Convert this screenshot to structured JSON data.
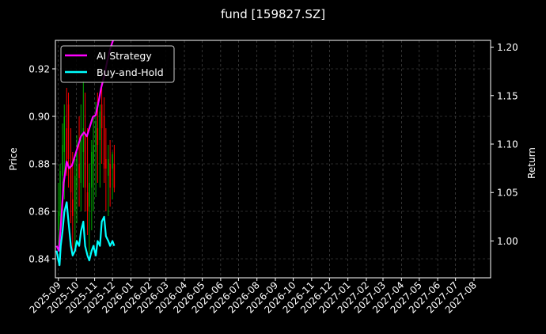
{
  "chart_data": {
    "type": "line",
    "title": "fund [159827.SZ]",
    "xlabel": "",
    "ylabel": "Price",
    "y2label": "Return",
    "background": "#000000",
    "grid": true,
    "legend_placement": "top-left",
    "xlim": [
      "2025-08-27",
      "2027-08-29"
    ],
    "ylim": [
      0.832,
      0.932
    ],
    "y2lim": [
      0.962,
      1.207
    ],
    "x_ticks": [
      "2025-09",
      "2025-10",
      "2025-11",
      "2025-12",
      "2026-01",
      "2026-02",
      "2026-03",
      "2026-04",
      "2026-05",
      "2026-06",
      "2026-07",
      "2026-08",
      "2026-09",
      "2026-10",
      "2026-11",
      "2026-12",
      "2027-01",
      "2027-02",
      "2027-03",
      "2027-04",
      "2027-05",
      "2027-06",
      "2027-07",
      "2027-08"
    ],
    "y_ticks": [
      "0.84",
      "0.86",
      "0.88",
      "0.90",
      "0.92"
    ],
    "y2_ticks": [
      "1.00",
      "1.05",
      "1.10",
      "1.15",
      "1.20"
    ],
    "colors": {
      "up": "#00aa00",
      "down": "#ff0000",
      "ai": "#ff00ff",
      "bh": "#00ffff"
    },
    "series": [
      {
        "name": "AI Strategy",
        "axis": "right",
        "x": [
          "2025-08-29",
          "2025-09-02",
          "2025-09-05",
          "2025-09-10",
          "2025-09-15",
          "2025-09-19",
          "2025-09-24",
          "2025-09-29",
          "2025-10-04",
          "2025-10-09",
          "2025-10-14",
          "2025-10-19",
          "2025-10-24",
          "2025-10-29",
          "2025-11-03",
          "2025-11-08",
          "2025-11-12",
          "2025-11-17",
          "2025-11-22",
          "2025-11-27",
          "2025-12-02"
        ],
        "values": [
          0.995,
          0.99,
          1.015,
          1.06,
          1.082,
          1.075,
          1.078,
          1.088,
          1.098,
          1.108,
          1.112,
          1.108,
          1.118,
          1.128,
          1.13,
          1.145,
          1.158,
          1.17,
          1.185,
          1.198,
          1.207
        ]
      },
      {
        "name": "Buy-and-Hold",
        "axis": "right",
        "x": [
          "2025-08-29",
          "2025-09-01",
          "2025-09-03",
          "2025-09-05",
          "2025-09-08",
          "2025-09-11",
          "2025-09-15",
          "2025-09-18",
          "2025-09-22",
          "2025-09-25",
          "2025-09-29",
          "2025-10-02",
          "2025-10-06",
          "2025-10-09",
          "2025-10-13",
          "2025-10-16",
          "2025-10-20",
          "2025-10-23",
          "2025-10-27",
          "2025-10-30",
          "2025-11-03",
          "2025-11-06",
          "2025-11-10",
          "2025-11-13",
          "2025-11-17",
          "2025-11-20",
          "2025-11-24",
          "2025-11-27",
          "2025-12-01",
          "2025-12-04"
        ],
        "values": [
          0.99,
          0.98,
          0.975,
          0.995,
          1.01,
          1.03,
          1.04,
          1.02,
          0.995,
          0.985,
          0.99,
          1.0,
          0.995,
          1.01,
          1.02,
          0.995,
          0.985,
          0.98,
          0.99,
          0.995,
          0.985,
          1.0,
          0.995,
          1.02,
          1.025,
          1.005,
          1.0,
          0.995,
          1.0,
          0.995
        ]
      },
      {
        "name": "Price",
        "axis": "left",
        "kind": "candles",
        "x": [
          "2025-09-01",
          "2025-09-04",
          "2025-09-08",
          "2025-09-11",
          "2025-09-15",
          "2025-09-18",
          "2025-09-22",
          "2025-09-25",
          "2025-09-29",
          "2025-10-02",
          "2025-10-06",
          "2025-10-09",
          "2025-10-13",
          "2025-10-16",
          "2025-10-20",
          "2025-10-23",
          "2025-10-27",
          "2025-10-30",
          "2025-11-03",
          "2025-11-06",
          "2025-11-10",
          "2025-11-13",
          "2025-11-17",
          "2025-11-20",
          "2025-11-24",
          "2025-11-27",
          "2025-12-01",
          "2025-12-04"
        ],
        "open": [
          0.852,
          0.858,
          0.875,
          0.885,
          0.895,
          0.905,
          0.88,
          0.865,
          0.86,
          0.87,
          0.88,
          0.872,
          0.885,
          0.892,
          0.868,
          0.862,
          0.87,
          0.88,
          0.885,
          0.895,
          0.89,
          0.905,
          0.9,
          0.882,
          0.875,
          0.88,
          0.878,
          0.88
        ],
        "high": [
          0.872,
          0.88,
          0.897,
          0.905,
          0.912,
          0.91,
          0.895,
          0.885,
          0.882,
          0.892,
          0.9,
          0.905,
          0.915,
          0.91,
          0.895,
          0.88,
          0.89,
          0.9,
          0.906,
          0.91,
          0.905,
          0.912,
          0.908,
          0.895,
          0.888,
          0.89,
          0.885,
          0.888
        ],
        "low": [
          0.846,
          0.85,
          0.86,
          0.865,
          0.875,
          0.87,
          0.855,
          0.842,
          0.845,
          0.855,
          0.862,
          0.86,
          0.87,
          0.86,
          0.85,
          0.842,
          0.852,
          0.86,
          0.866,
          0.872,
          0.87,
          0.88,
          0.872,
          0.86,
          0.858,
          0.862,
          0.865,
          0.868
        ],
        "close": [
          0.86,
          0.877,
          0.888,
          0.9,
          0.88,
          0.882,
          0.868,
          0.858,
          0.875,
          0.885,
          0.874,
          0.89,
          0.895,
          0.87,
          0.86,
          0.872,
          0.885,
          0.888,
          0.898,
          0.888,
          0.902,
          0.895,
          0.878,
          0.878,
          0.882,
          0.87,
          0.884,
          0.87
        ]
      }
    ]
  }
}
